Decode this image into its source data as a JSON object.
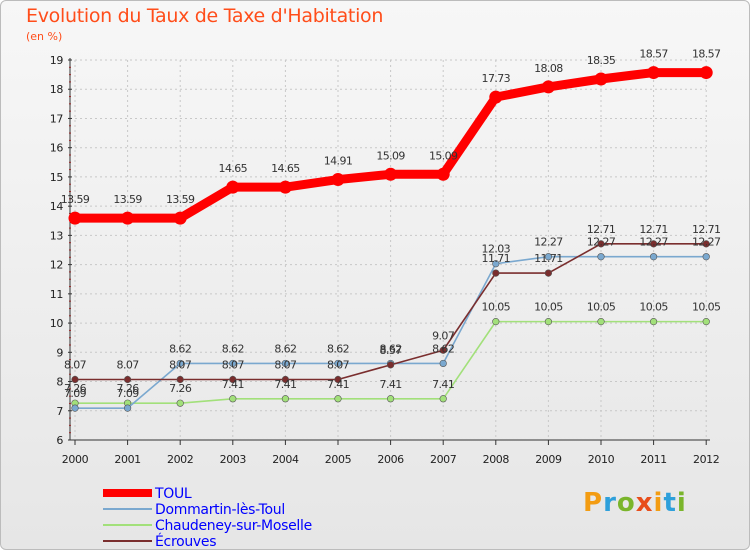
{
  "title": "Evolution du Taux de Taxe d'Habitation",
  "unit": "(en %)",
  "logo": {
    "text": "Proxiti",
    "colors": [
      "#f39c12",
      "#2ea0db",
      "#7ab52b",
      "#e84e1b",
      "#f39c12",
      "#2ea0db",
      "#7ab52b"
    ]
  },
  "chart_data": {
    "type": "line",
    "title": "Evolution du Taux de Taxe d'Habitation",
    "ylabel": "(en %)",
    "xlabel": "",
    "x": [
      "2000",
      "2001",
      "2002",
      "2003",
      "2004",
      "2005",
      "2006",
      "2007",
      "2008",
      "2009",
      "2010",
      "2011",
      "2012"
    ],
    "ylim": [
      6,
      19
    ],
    "yticks": [
      "6",
      "7",
      "8",
      "9",
      "10",
      "11",
      "12",
      "13",
      "14",
      "15",
      "16",
      "17",
      "18",
      "19"
    ],
    "grid": true,
    "legend": "bottom-left",
    "series": [
      {
        "name": "TOUL",
        "color": "#ff0000",
        "labelColor": "#0000ff",
        "values": [
          13.59,
          13.59,
          13.59,
          14.65,
          14.65,
          14.91,
          15.09,
          15.09,
          17.73,
          18.08,
          18.35,
          18.57,
          18.57
        ],
        "labels": [
          "13.59",
          "13.59",
          "13.59",
          "14.65",
          "14.65",
          "14.91",
          "15.09",
          "15.09",
          "17.73",
          "18.08",
          "18.35",
          "18.57",
          "18.57"
        ]
      },
      {
        "name": "Dommartin-lès-Toul",
        "color": "#7aa8cf",
        "labelColor": "#0000ff",
        "values": [
          7.09,
          7.09,
          8.62,
          8.62,
          8.62,
          8.62,
          8.62,
          8.62,
          12.03,
          12.27,
          12.27,
          12.27,
          12.27
        ],
        "labels": [
          "7.09",
          "7.09",
          "8.62",
          "8.62",
          "8.62",
          "8.62",
          "8.62",
          "8.62",
          "12.03",
          "12.27",
          "12.27",
          "12.27",
          "12.27"
        ]
      },
      {
        "name": "Chaudeney-sur-Moselle",
        "color": "#a2e07a",
        "labelColor": "#0000ff",
        "values": [
          7.26,
          7.26,
          7.26,
          7.41,
          7.41,
          7.41,
          7.41,
          7.41,
          10.05,
          10.05,
          10.05,
          10.05,
          10.05
        ],
        "labels": [
          "7.26",
          "7.26",
          "7.26",
          "7.41",
          "7.41",
          "7.41",
          "7.41",
          "7.41",
          "10.05",
          "10.05",
          "10.05",
          "10.05",
          "10.05"
        ]
      },
      {
        "name": "Écrouves",
        "color": "#7a2e2e",
        "labelColor": "#0000ff",
        "values": [
          8.07,
          8.07,
          8.07,
          8.07,
          8.07,
          8.07,
          8.57,
          9.07,
          11.71,
          11.71,
          12.71,
          12.71,
          12.71
        ],
        "labels": [
          "8.07",
          "8.07",
          "8.07",
          "8.07",
          "8.07",
          "8.07",
          "8.57",
          "9.07",
          "11.71",
          "11.71",
          "12.71",
          "12.71",
          "12.71"
        ]
      }
    ]
  }
}
